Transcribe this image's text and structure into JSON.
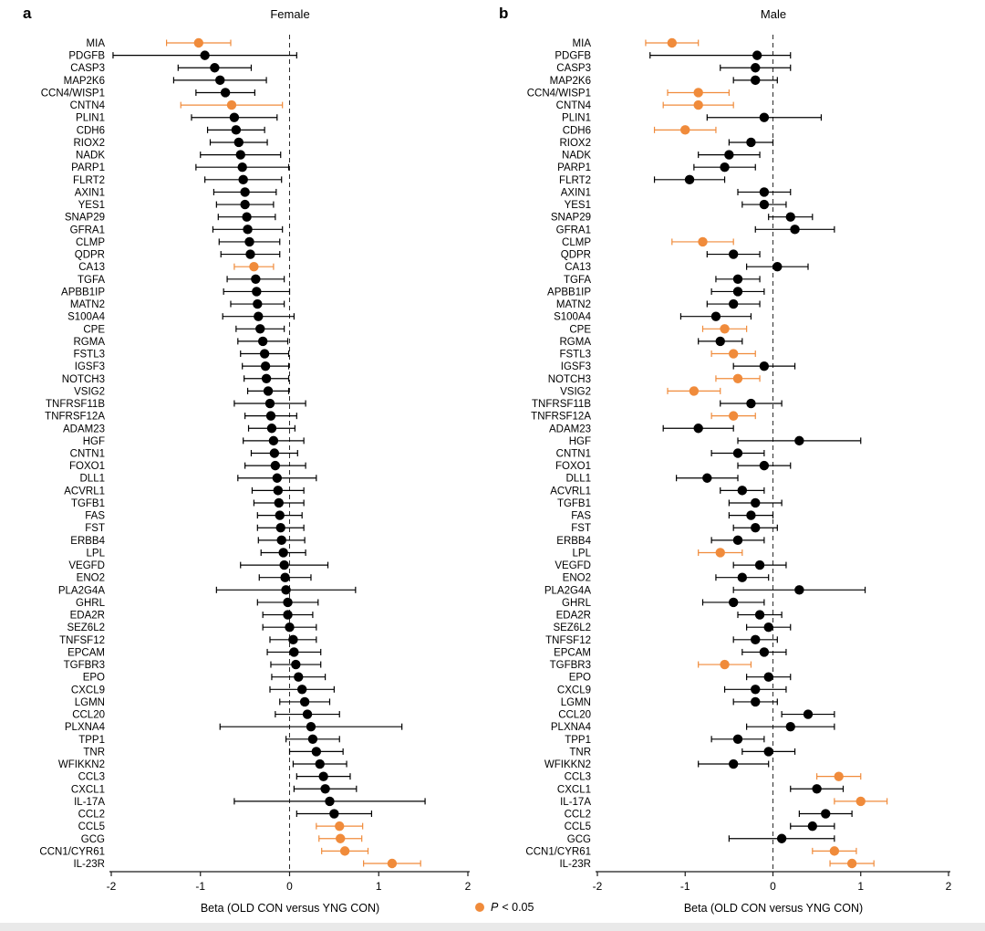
{
  "figure": {
    "panel_a": {
      "letter": "a",
      "title": "Female",
      "xlabel": "Beta (OLD CON versus YNG CON)"
    },
    "panel_b": {
      "letter": "b",
      "title": "Male",
      "xlabel": "Beta (OLD CON versus YNG CON)"
    },
    "legend": {
      "p": "P",
      "rest": "< 0.05"
    }
  },
  "colors": {
    "significant": "#F08B3B",
    "default": "#000000",
    "axis": "#1a1a1a",
    "zero_line": "#2b2b2b"
  },
  "chart_data": {
    "type": "scatter",
    "subtype": "forest-dot-plot-with-ci",
    "xlabel": "Beta (OLD CON versus YNG CON)",
    "xlim": [
      -2,
      2
    ],
    "xticks": [
      -2,
      -1,
      0,
      1,
      2
    ],
    "zero_reference_line": {
      "x": 0,
      "style": "dashed"
    },
    "legend": {
      "text": "P < 0.05",
      "marker_color": "#F08B3B",
      "meaning": "significant point"
    },
    "genes": [
      "MIA",
      "PDGFB",
      "CASP3",
      "MAP2K6",
      "CCN4/WISP1",
      "CNTN4",
      "PLIN1",
      "CDH6",
      "RIOX2",
      "NADK",
      "PARP1",
      "FLRT2",
      "AXIN1",
      "YES1",
      "SNAP29",
      "GFRA1",
      "CLMP",
      "QDPR",
      "CA13",
      "TGFA",
      "APBB1IP",
      "MATN2",
      "S100A4",
      "CPE",
      "RGMA",
      "FSTL3",
      "IGSF3",
      "NOTCH3",
      "VSIG2",
      "TNFRSF11B",
      "TNFRSF12A",
      "ADAM23",
      "HGF",
      "CNTN1",
      "FOXO1",
      "DLL1",
      "ACVRL1",
      "TGFB1",
      "FAS",
      "FST",
      "ERBB4",
      "LPL",
      "VEGFD",
      "ENO2",
      "PLA2G4A",
      "GHRL",
      "EDA2R",
      "SEZ6L2",
      "TNFSF12",
      "EPCAM",
      "TGFBR3",
      "EPO",
      "CXCL9",
      "LGMN",
      "CCL20",
      "PLXNA4",
      "TPP1",
      "TNR",
      "WFIKKN2",
      "CCL3",
      "CXCL1",
      "IL-17A",
      "CCL2",
      "CCL5",
      "GCG",
      "CCN1/CYR61",
      "IL-23R"
    ],
    "panels": [
      {
        "id": "a",
        "title": "Female",
        "beta": [
          -1.02,
          -0.95,
          -0.84,
          -0.78,
          -0.72,
          -0.65,
          -0.62,
          -0.6,
          -0.57,
          -0.55,
          -0.53,
          -0.52,
          -0.5,
          -0.5,
          -0.48,
          -0.47,
          -0.45,
          -0.44,
          -0.4,
          -0.38,
          -0.37,
          -0.36,
          -0.35,
          -0.33,
          -0.3,
          -0.28,
          -0.27,
          -0.26,
          -0.24,
          -0.22,
          -0.21,
          -0.2,
          -0.18,
          -0.17,
          -0.16,
          -0.14,
          -0.13,
          -0.12,
          -0.11,
          -0.1,
          -0.09,
          -0.07,
          -0.06,
          -0.05,
          -0.04,
          -0.02,
          -0.02,
          0.0,
          0.04,
          0.05,
          0.07,
          0.1,
          0.14,
          0.17,
          0.2,
          0.24,
          0.26,
          0.3,
          0.34,
          0.38,
          0.4,
          0.45,
          0.5,
          0.56,
          0.57,
          0.62,
          1.15
        ],
        "ci_low": [
          -1.38,
          -1.98,
          -1.25,
          -1.3,
          -1.05,
          -1.22,
          -1.1,
          -0.92,
          -0.89,
          -1.0,
          -1.05,
          -0.95,
          -0.85,
          -0.82,
          -0.8,
          -0.86,
          -0.79,
          -0.77,
          -0.62,
          -0.7,
          -0.74,
          -0.66,
          -0.75,
          -0.6,
          -0.58,
          -0.55,
          -0.53,
          -0.51,
          -0.47,
          -0.62,
          -0.5,
          -0.46,
          -0.52,
          -0.43,
          -0.5,
          -0.58,
          -0.42,
          -0.4,
          -0.36,
          -0.36,
          -0.35,
          -0.32,
          -0.55,
          -0.34,
          -0.82,
          -0.36,
          -0.3,
          -0.3,
          -0.22,
          -0.25,
          -0.21,
          -0.2,
          -0.22,
          -0.11,
          -0.16,
          -0.78,
          -0.04,
          0.0,
          0.04,
          0.08,
          0.05,
          -0.62,
          0.08,
          0.3,
          0.33,
          0.36,
          0.83
        ],
        "ci_high": [
          -0.66,
          0.08,
          -0.43,
          -0.26,
          -0.39,
          -0.08,
          -0.14,
          -0.28,
          -0.25,
          -0.1,
          -0.01,
          -0.09,
          -0.15,
          -0.18,
          -0.16,
          -0.08,
          -0.11,
          -0.11,
          -0.18,
          -0.06,
          0.0,
          -0.06,
          0.05,
          -0.06,
          -0.02,
          -0.01,
          -0.01,
          -0.01,
          -0.01,
          0.18,
          0.08,
          0.06,
          0.16,
          0.09,
          0.18,
          0.3,
          0.16,
          0.16,
          0.14,
          0.16,
          0.17,
          0.18,
          0.43,
          0.24,
          0.74,
          0.32,
          0.26,
          0.3,
          0.3,
          0.35,
          0.35,
          0.4,
          0.5,
          0.45,
          0.56,
          1.26,
          0.56,
          0.6,
          0.64,
          0.68,
          0.75,
          1.52,
          0.92,
          0.82,
          0.81,
          0.88,
          1.47
        ],
        "significant_genes": [
          "MIA",
          "CNTN4",
          "CA13",
          "CCL5",
          "GCG",
          "CCN1/CYR61",
          "IL-23R"
        ]
      },
      {
        "id": "b",
        "title": "Male",
        "beta": [
          -1.15,
          -0.18,
          -0.2,
          -0.2,
          -0.85,
          -0.85,
          -0.1,
          -1.0,
          -0.25,
          -0.5,
          -0.55,
          -0.95,
          -0.1,
          -0.1,
          0.2,
          0.25,
          -0.8,
          -0.45,
          0.05,
          -0.4,
          -0.4,
          -0.45,
          -0.65,
          -0.55,
          -0.6,
          -0.45,
          -0.1,
          -0.4,
          -0.9,
          -0.25,
          -0.45,
          -0.85,
          0.3,
          -0.4,
          -0.1,
          -0.75,
          -0.35,
          -0.2,
          -0.25,
          -0.2,
          -0.4,
          -0.6,
          -0.15,
          -0.35,
          0.3,
          -0.45,
          -0.15,
          -0.05,
          -0.2,
          -0.1,
          -0.55,
          -0.05,
          -0.2,
          -0.2,
          0.4,
          0.2,
          -0.4,
          -0.05,
          -0.45,
          0.75,
          0.5,
          1.0,
          0.6,
          0.45,
          0.1,
          0.7,
          0.9
        ],
        "ci_low": [
          -1.45,
          -1.4,
          -0.6,
          -0.45,
          -1.2,
          -1.25,
          -0.75,
          -1.35,
          -0.5,
          -0.85,
          -0.9,
          -1.35,
          -0.4,
          -0.35,
          -0.05,
          -0.2,
          -1.15,
          -0.75,
          -0.3,
          -0.65,
          -0.7,
          -0.75,
          -1.05,
          -0.8,
          -0.85,
          -0.7,
          -0.45,
          -0.65,
          -1.2,
          -0.6,
          -0.7,
          -1.25,
          -0.4,
          -0.7,
          -0.4,
          -1.1,
          -0.6,
          -0.5,
          -0.5,
          -0.45,
          -0.7,
          -0.85,
          -0.45,
          -0.65,
          -0.45,
          -0.8,
          -0.4,
          -0.3,
          -0.45,
          -0.35,
          -0.85,
          -0.3,
          -0.55,
          -0.45,
          0.1,
          -0.3,
          -0.7,
          -0.35,
          -0.85,
          0.5,
          0.2,
          0.7,
          0.3,
          0.2,
          -0.5,
          0.45,
          0.65
        ],
        "ci_high": [
          -0.85,
          0.2,
          0.2,
          0.05,
          -0.5,
          -0.45,
          0.55,
          -0.65,
          0.0,
          -0.15,
          -0.2,
          -0.55,
          0.2,
          0.15,
          0.45,
          0.7,
          -0.45,
          -0.15,
          0.4,
          -0.15,
          -0.1,
          -0.15,
          -0.25,
          -0.3,
          -0.35,
          -0.2,
          0.25,
          -0.15,
          -0.6,
          0.1,
          -0.2,
          -0.45,
          1.0,
          -0.1,
          0.2,
          -0.4,
          -0.1,
          0.1,
          0.0,
          0.05,
          -0.1,
          -0.35,
          0.15,
          -0.05,
          1.05,
          -0.1,
          0.1,
          0.2,
          0.05,
          0.15,
          -0.25,
          0.2,
          0.15,
          0.05,
          0.7,
          0.7,
          -0.1,
          0.25,
          -0.05,
          1.0,
          0.8,
          1.3,
          0.9,
          0.7,
          0.7,
          0.95,
          1.15
        ],
        "significant_genes": [
          "MIA",
          "CCN4/WISP1",
          "CNTN4",
          "CDH6",
          "CLMP",
          "CPE",
          "FSTL3",
          "NOTCH3",
          "VSIG2",
          "TNFRSF12A",
          "LPL",
          "TGFBR3",
          "CCL3",
          "IL-17A",
          "CCN1/CYR61",
          "IL-23R"
        ]
      }
    ]
  }
}
